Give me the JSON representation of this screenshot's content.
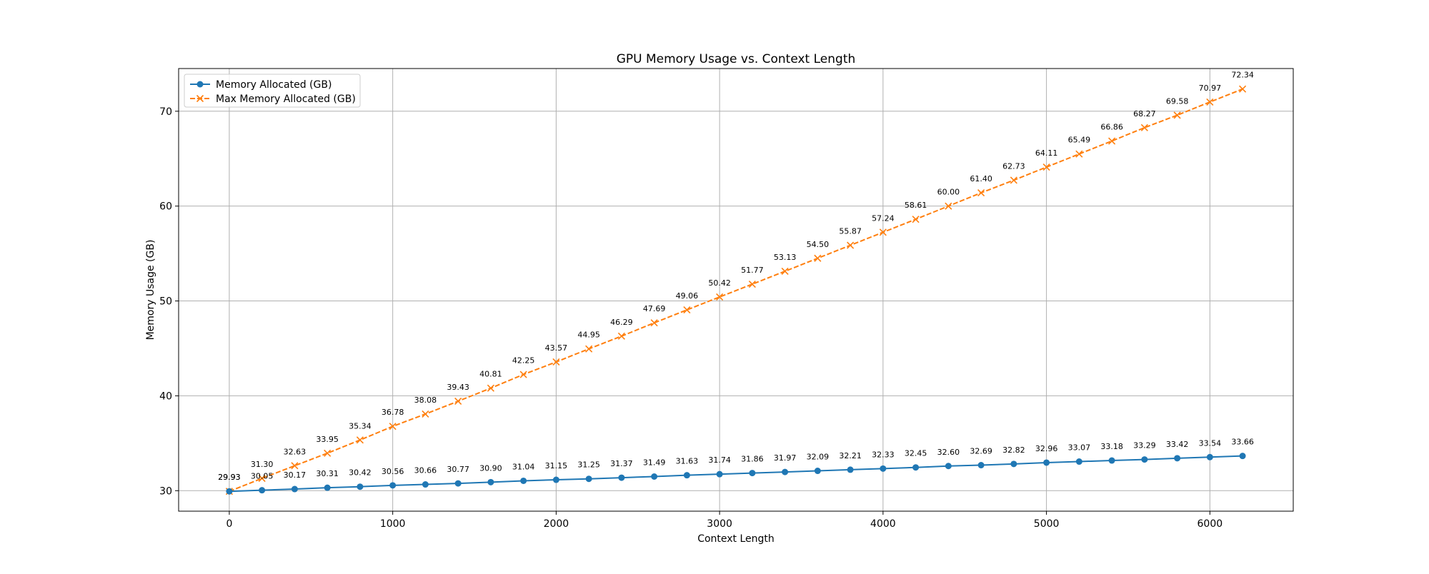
{
  "chart_data": {
    "type": "line",
    "title": "GPU Memory Usage vs. Context Length",
    "xlabel": "Context Length",
    "ylabel": "Memory Usage (GB)",
    "xlim": [
      -310,
      6510
    ],
    "ylim": [
      27.84,
      74.5
    ],
    "xticks": [
      0,
      1000,
      2000,
      3000,
      4000,
      5000,
      6000
    ],
    "yticks": [
      30,
      40,
      50,
      60,
      70
    ],
    "grid": true,
    "legend_position": "top-left",
    "x": [
      0,
      200,
      400,
      600,
      800,
      1000,
      1200,
      1400,
      1600,
      1800,
      2000,
      2200,
      2400,
      2600,
      2800,
      3000,
      3200,
      3400,
      3600,
      3800,
      4000,
      4200,
      4400,
      4600,
      4800,
      5000,
      5200,
      5400,
      5600,
      5800,
      6000,
      6200
    ],
    "series": [
      {
        "name": "Memory Allocated (GB)",
        "color": "#1f77b4",
        "marker": "circle",
        "linestyle": "solid",
        "values": [
          29.93,
          30.05,
          30.17,
          30.31,
          30.42,
          30.56,
          30.66,
          30.77,
          30.9,
          31.04,
          31.15,
          31.25,
          31.37,
          31.49,
          31.63,
          31.74,
          31.86,
          31.97,
          32.09,
          32.21,
          32.33,
          32.45,
          32.6,
          32.69,
          32.82,
          32.96,
          33.07,
          33.18,
          33.29,
          33.42,
          33.54,
          33.66
        ],
        "labels": [
          "29.93",
          "30.05",
          "30.17",
          "30.31",
          "30.42",
          "30.56",
          "30.66",
          "30.77",
          "30.90",
          "31.04",
          "31.15",
          "31.25",
          "31.37",
          "31.49",
          "31.63",
          "31.74",
          "31.86",
          "31.97",
          "32.09",
          "32.21",
          "32.33",
          "32.45",
          "32.60",
          "32.69",
          "32.82",
          "32.96",
          "33.07",
          "33.18",
          "33.29",
          "33.42",
          "33.54",
          "33.66"
        ]
      },
      {
        "name": "Max Memory Allocated (GB)",
        "color": "#ff7f0e",
        "marker": "x",
        "linestyle": "dashed",
        "values": [
          29.93,
          31.3,
          32.63,
          33.95,
          35.34,
          36.78,
          38.08,
          39.43,
          40.81,
          42.25,
          43.57,
          44.95,
          46.29,
          47.69,
          49.06,
          50.42,
          51.77,
          53.13,
          54.5,
          55.87,
          57.24,
          58.61,
          60.0,
          61.4,
          62.73,
          64.11,
          65.49,
          66.86,
          68.27,
          69.58,
          70.97,
          72.34
        ],
        "labels": [
          "29.93",
          "31.30",
          "32.63",
          "33.95",
          "35.34",
          "36.78",
          "38.08",
          "39.43",
          "40.81",
          "42.25",
          "43.57",
          "44.95",
          "46.29",
          "47.69",
          "49.06",
          "50.42",
          "51.77",
          "53.13",
          "54.50",
          "55.87",
          "57.24",
          "58.61",
          "60.00",
          "61.40",
          "62.73",
          "64.11",
          "65.49",
          "66.86",
          "68.27",
          "69.58",
          "70.97",
          "72.34"
        ]
      }
    ]
  }
}
